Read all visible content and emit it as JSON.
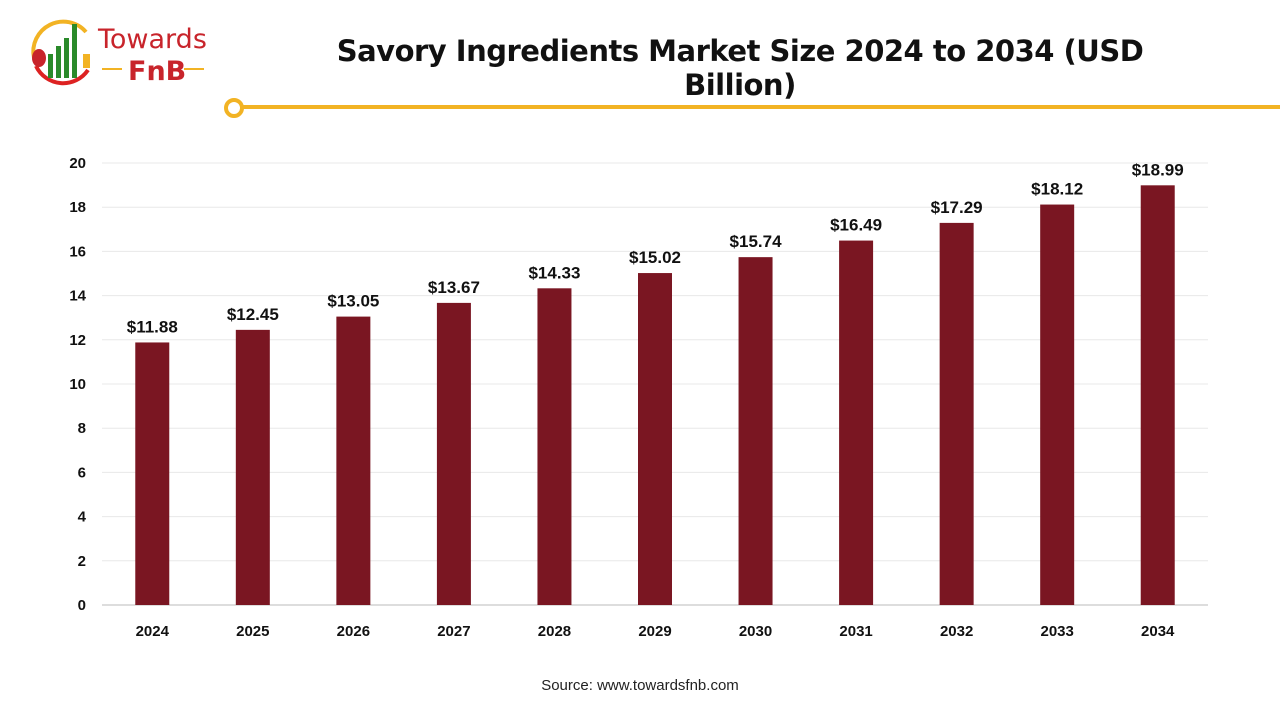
{
  "logo": {
    "text_top": "Towards",
    "text_bottom": "FnB"
  },
  "chart_data": {
    "type": "bar",
    "title": "Savory Ingredients Market Size 2024 to 2034 (USD Billion)",
    "categories": [
      "2024",
      "2025",
      "2026",
      "2027",
      "2028",
      "2029",
      "2030",
      "2031",
      "2032",
      "2033",
      "2034"
    ],
    "values": [
      11.88,
      12.45,
      13.05,
      13.67,
      14.33,
      15.02,
      15.74,
      16.49,
      17.29,
      18.12,
      18.99
    ],
    "data_labels": [
      "$11.88",
      "$12.45",
      "$13.05",
      "$13.67",
      "$14.33",
      "$15.02",
      "$15.74",
      "$16.49",
      "$17.29",
      "$18.12",
      "$18.99"
    ],
    "yticks": [
      "0",
      "2",
      "4",
      "6",
      "8",
      "10",
      "12",
      "14",
      "16",
      "18",
      "20"
    ],
    "ylim": [
      0,
      20
    ],
    "grid": true,
    "bar_color": "#7a1622",
    "xlabel": "",
    "ylabel": ""
  },
  "source": "Source: www.towardsfnb.com"
}
